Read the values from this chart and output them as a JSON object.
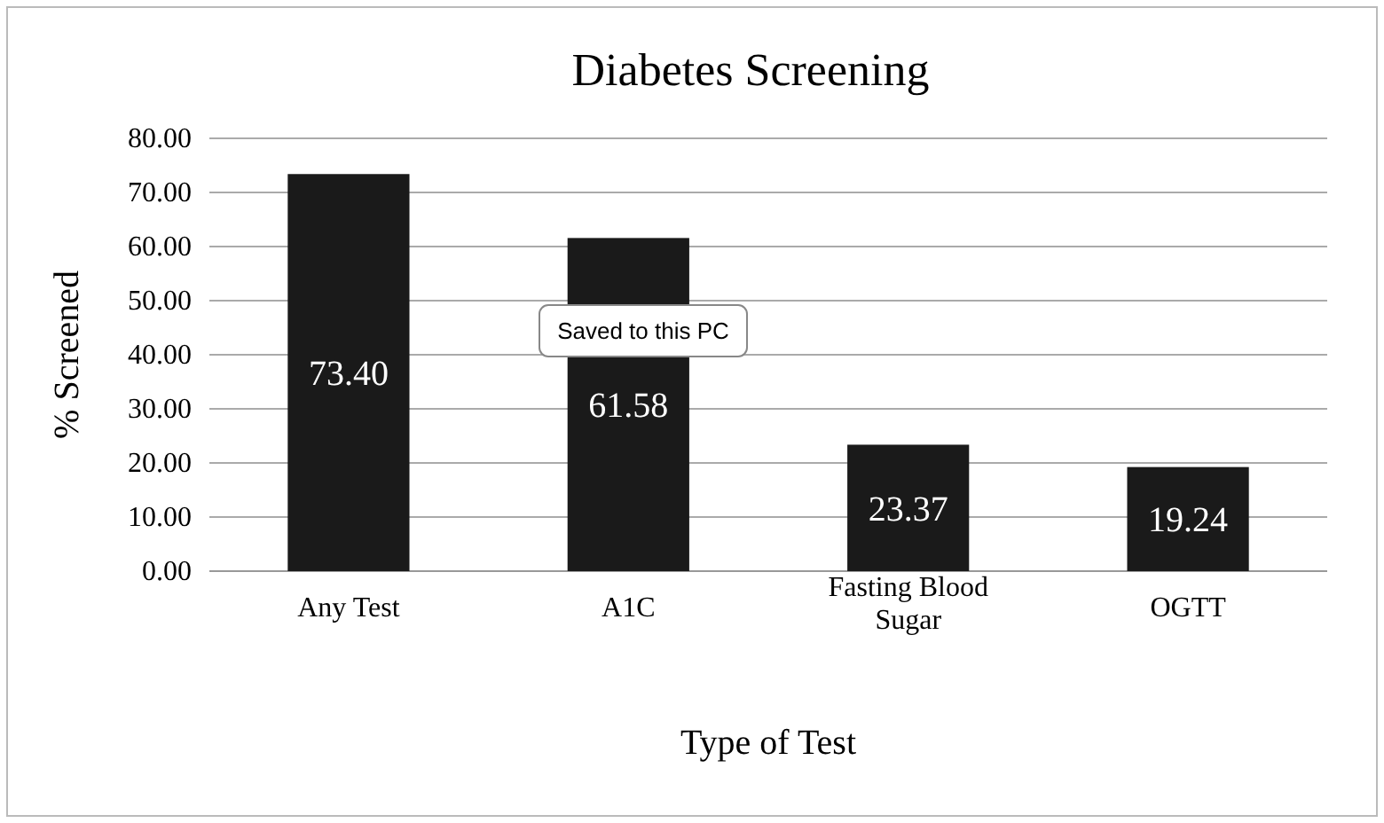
{
  "chart_data": {
    "type": "bar",
    "title": "Diabetes Screening",
    "xlabel": "Type of Test",
    "ylabel": "% Screened",
    "categories": [
      "Any Test",
      "A1C",
      "Fasting Blood Sugar",
      "OGTT"
    ],
    "values": [
      73.4,
      61.58,
      23.37,
      19.24
    ],
    "value_labels": [
      "73.40",
      "61.58",
      "23.37",
      "19.24"
    ],
    "color": "#1a1a1a",
    "ylim": [
      0,
      80
    ],
    "yticks": [
      {
        "value": 0,
        "label": "0.00"
      },
      {
        "value": 10,
        "label": "10.00"
      },
      {
        "value": 20,
        "label": "20.00"
      },
      {
        "value": 30,
        "label": "30.00"
      },
      {
        "value": 40,
        "label": "40.00"
      },
      {
        "value": 50,
        "label": "50.00"
      },
      {
        "value": 60,
        "label": "60.00"
      },
      {
        "value": 70,
        "label": "70.00"
      },
      {
        "value": 80,
        "label": "80.00"
      }
    ],
    "grid": "y",
    "annotations": [
      "Saved to this PC"
    ]
  }
}
